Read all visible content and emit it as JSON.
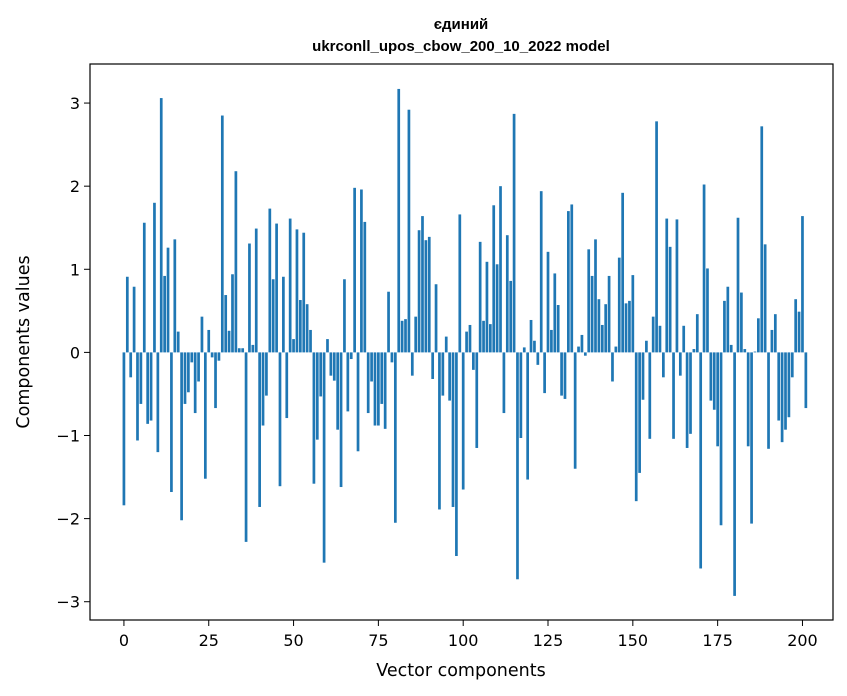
{
  "chart_data": {
    "type": "bar",
    "title": [
      "єдиний",
      "ukrconll_upos_cbow_200_10_2022 model"
    ],
    "xlabel": "Vector components",
    "ylabel": "Components values",
    "xlim": [
      -10,
      209
    ],
    "ylim": [
      -3.22,
      3.47
    ],
    "xticks": [
      0,
      25,
      50,
      75,
      100,
      125,
      150,
      175,
      200
    ],
    "yticks": [
      -3,
      -2,
      -1,
      0,
      1,
      2,
      3
    ],
    "color": "#1f77b4",
    "grid": false,
    "legend": "none",
    "values": [
      -1.84,
      0.91,
      -0.3,
      0.79,
      -1.06,
      -0.62,
      1.56,
      -0.86,
      -0.82,
      1.8,
      -1.2,
      3.06,
      0.92,
      1.26,
      -1.68,
      1.36,
      0.25,
      -2.02,
      -0.62,
      -0.48,
      -0.12,
      -0.73,
      -0.35,
      0.43,
      -1.52,
      0.27,
      -0.06,
      -0.67,
      -0.1,
      2.85,
      0.69,
      0.26,
      0.94,
      2.18,
      0.05,
      0.05,
      -2.28,
      1.31,
      0.09,
      1.49,
      -1.86,
      -0.88,
      -0.52,
      1.73,
      0.88,
      1.55,
      -1.61,
      0.91,
      -0.79,
      1.61,
      0.16,
      1.48,
      0.63,
      1.44,
      0.58,
      0.27,
      -1.58,
      -1.05,
      -0.53,
      -2.53,
      0.16,
      -0.28,
      -0.34,
      -0.93,
      -1.62,
      0.88,
      -0.71,
      -0.08,
      1.98,
      -1.19,
      1.96,
      1.57,
      -0.73,
      -0.35,
      -0.88,
      -0.88,
      -0.62,
      -0.92,
      0.73,
      -0.12,
      -2.05,
      3.17,
      0.38,
      0.4,
      2.92,
      -0.28,
      0.43,
      1.47,
      1.64,
      1.35,
      1.39,
      -0.32,
      0.82,
      -1.89,
      -0.52,
      0.19,
      -0.58,
      -1.86,
      -2.45,
      1.66,
      -1.65,
      0.25,
      0.33,
      -0.21,
      -1.15,
      1.33,
      0.38,
      1.09,
      0.34,
      1.77,
      1.06,
      2.0,
      -0.73,
      1.41,
      0.86,
      2.87,
      -2.73,
      -1.03,
      0.06,
      -1.53,
      0.39,
      0.14,
      -0.15,
      1.94,
      -0.49,
      1.21,
      0.27,
      0.95,
      0.57,
      -0.52,
      -0.56,
      1.7,
      1.78,
      -1.4,
      0.07,
      0.21,
      -0.04,
      1.24,
      0.92,
      1.36,
      0.64,
      0.33,
      0.58,
      0.92,
      -0.35,
      0.07,
      1.14,
      1.92,
      0.59,
      0.62,
      0.93,
      -1.79,
      -1.45,
      -0.57,
      0.14,
      -1.04,
      0.43,
      2.78,
      0.32,
      -0.3,
      1.61,
      1.27,
      -1.04,
      1.6,
      -0.28,
      0.32,
      -1.15,
      -0.98,
      0.04,
      0.46,
      -2.6,
      2.02,
      1.01,
      -0.58,
      -0.69,
      -1.13,
      -2.08,
      0.62,
      0.79,
      0.09,
      -2.93,
      1.62,
      0.72,
      0.04,
      -1.13,
      -2.06,
      0.01,
      0.41,
      2.72,
      1.3,
      -1.16,
      0.27,
      0.46,
      -0.82,
      -1.08,
      -0.93,
      -0.78,
      -0.3,
      0.64,
      0.49,
      1.64,
      -0.67
    ]
  }
}
